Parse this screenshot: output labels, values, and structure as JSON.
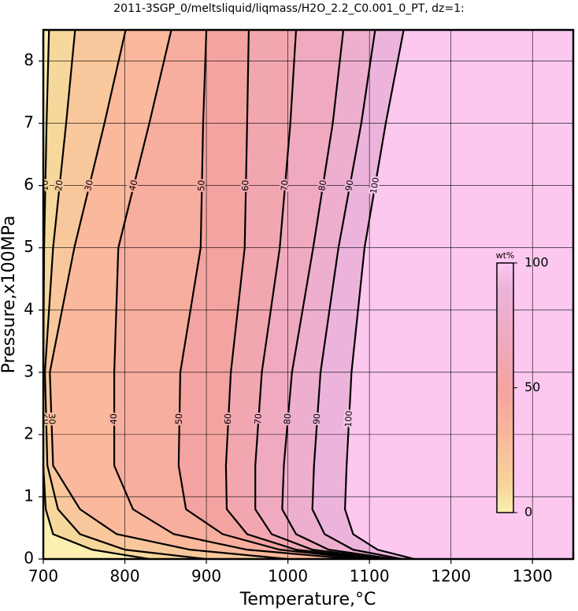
{
  "chart_data": {
    "type": "contour",
    "title": "2011-3SGP_0/meltsliquid/liqmass/H2O_2.2_C0.001_0_PT, dz=1:",
    "x_label": "Temperature,°C",
    "y_label": "Pressure,x100MPa",
    "xlim": [
      700,
      1350
    ],
    "xticks": [
      700,
      800,
      900,
      1000,
      1100,
      1200,
      1300
    ],
    "ylim": [
      0,
      8.5
    ],
    "yticks": [
      0,
      1,
      2,
      3,
      4,
      5,
      6,
      7,
      8
    ],
    "grid": true,
    "colorbar": {
      "label": "wt%",
      "lim": [
        0,
        100
      ],
      "ticks": [
        0,
        50,
        100
      ]
    },
    "colormap": [
      {
        "value": 0,
        "color": "#fbf0b0"
      },
      {
        "value": 10,
        "color": "#f6d79c"
      },
      {
        "value": 30,
        "color": "#fab89c"
      },
      {
        "value": 50,
        "color": "#f4a4a0"
      },
      {
        "value": 70,
        "color": "#f0aac0"
      },
      {
        "value": 90,
        "color": "#ecb4dc"
      },
      {
        "value": 100,
        "color": "#fcc8f0"
      }
    ],
    "contours": [
      {
        "level": 10,
        "pressure": [
          0,
          0.15,
          0.4,
          0.8,
          1.5,
          3,
          5,
          7,
          8.5
        ],
        "temperature": [
          830,
          760,
          712,
          703,
          700,
          700,
          701,
          704,
          707
        ]
      },
      {
        "level": 20,
        "pressure": [
          0,
          0.15,
          0.4,
          0.8,
          1.5,
          3,
          5,
          7,
          8.5
        ],
        "temperature": [
          900,
          800,
          745,
          718,
          705,
          702,
          712,
          728,
          739
        ]
      },
      {
        "level": 30,
        "pressure": [
          0,
          0.15,
          0.4,
          0.8,
          1.5,
          3,
          5,
          7,
          8.5
        ],
        "temperature": [
          1000,
          880,
          790,
          745,
          712,
          708,
          738,
          775,
          801
        ]
      },
      {
        "level": 40,
        "pressure": [
          0,
          0.15,
          0.4,
          0.8,
          1.5,
          3,
          5,
          7,
          8.5
        ],
        "temperature": [
          1080,
          950,
          860,
          810,
          787,
          787,
          792,
          830,
          857
        ]
      },
      {
        "level": 50,
        "pressure": [
          0,
          0.15,
          0.4,
          0.8,
          1.5,
          3,
          5,
          7,
          8.5
        ],
        "temperature": [
          1095,
          990,
          920,
          875,
          866,
          868,
          893,
          896,
          900
        ]
      },
      {
        "level": 60,
        "pressure": [
          0,
          0.15,
          0.4,
          0.8,
          1.5,
          3,
          5,
          7,
          8.5
        ],
        "temperature": [
          1110,
          1010,
          950,
          925,
          924,
          930,
          947,
          950,
          952
        ]
      },
      {
        "level": 70,
        "pressure": [
          0,
          0.15,
          0.4,
          0.8,
          1.5,
          3,
          5,
          7,
          8.5
        ],
        "temperature": [
          1120,
          1030,
          980,
          960,
          960,
          968,
          990,
          1003,
          1010
        ]
      },
      {
        "level": 80,
        "pressure": [
          0,
          0.15,
          0.4,
          0.8,
          1.5,
          3,
          5,
          7,
          8.5
        ],
        "temperature": [
          1130,
          1050,
          1010,
          993,
          995,
          1005,
          1031,
          1055,
          1068
        ]
      },
      {
        "level": 90,
        "pressure": [
          0,
          0.15,
          0.4,
          0.8,
          1.5,
          3,
          5,
          7,
          8.5
        ],
        "temperature": [
          1140,
          1080,
          1045,
          1030,
          1032,
          1040,
          1062,
          1090,
          1107
        ]
      },
      {
        "level": 100,
        "pressure": [
          0,
          0.15,
          0.4,
          0.8,
          1.5,
          3,
          5,
          7,
          8.5
        ],
        "temperature": [
          1155,
          1110,
          1080,
          1070,
          1072,
          1078,
          1094,
          1120,
          1142
        ]
      }
    ]
  }
}
